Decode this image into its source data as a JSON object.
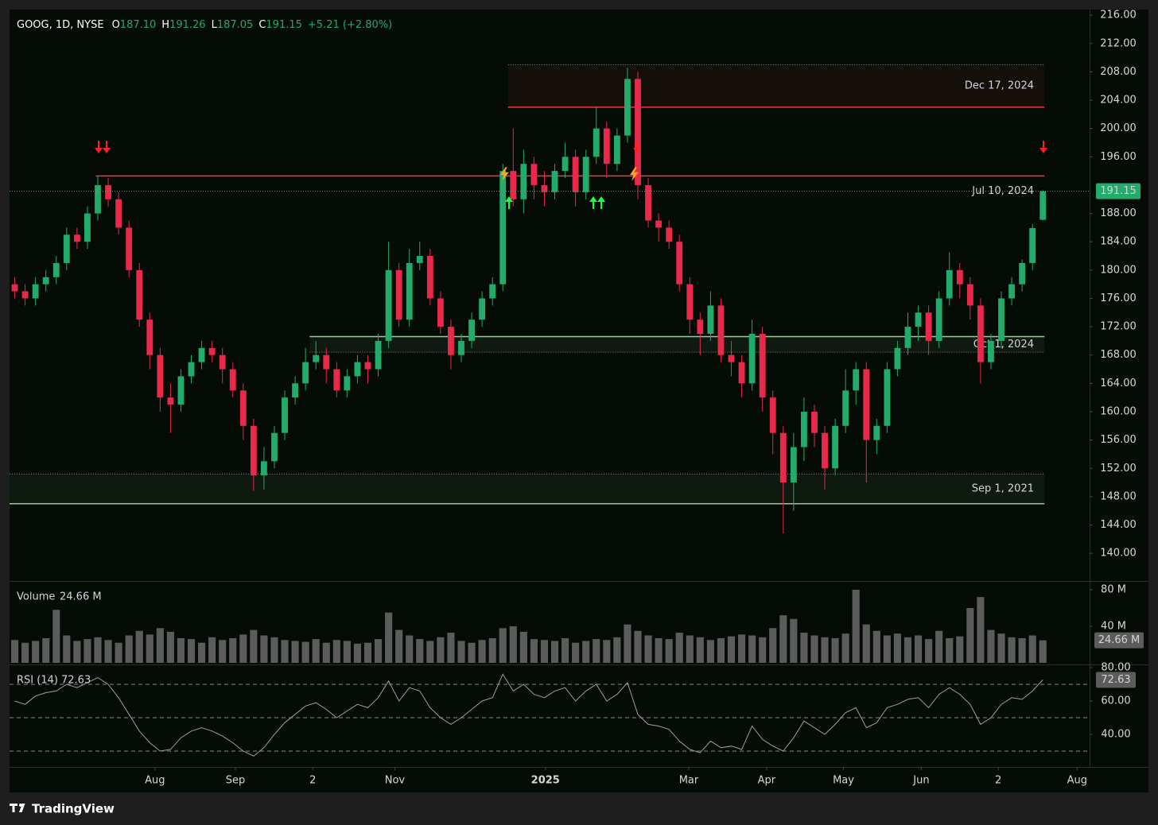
{
  "header": {
    "symbol": "GOOG, 1D, NYSE",
    "ohlc": [
      {
        "key": "O",
        "value": "187.10"
      },
      {
        "key": "H",
        "value": "191.26"
      },
      {
        "key": "L",
        "value": "187.05"
      },
      {
        "key": "C",
        "value": "191.15"
      }
    ],
    "change": "+5.21 (+2.80%)"
  },
  "footer": {
    "brand": "TradingView"
  },
  "chart_data": {
    "type": "candlestick",
    "up_color": "#22ab6a",
    "down_color": "#e8294b",
    "open": [
      178,
      177,
      176,
      178,
      179,
      181,
      185,
      184,
      188,
      192,
      190,
      186,
      180,
      173,
      168,
      162,
      161,
      165,
      167,
      169,
      168,
      166,
      163,
      158,
      151,
      153,
      157,
      162,
      164,
      167,
      168,
      166,
      163,
      165,
      167,
      166,
      170,
      180,
      173,
      181,
      182,
      176,
      172,
      168,
      170,
      173,
      176,
      178,
      194,
      190,
      195,
      192,
      191,
      194,
      196,
      191,
      196,
      200,
      195,
      199,
      207,
      192,
      187,
      186,
      184,
      178,
      173,
      171,
      175,
      168,
      167,
      164,
      171,
      162,
      157,
      150,
      155,
      160,
      157,
      152,
      158,
      163,
      166,
      156,
      158,
      166,
      169,
      172,
      174,
      170,
      176,
      180,
      178,
      175,
      167,
      170,
      176,
      178,
      181,
      187.1
    ],
    "high": [
      179,
      178,
      179,
      180,
      182,
      186,
      186,
      189,
      193.3,
      193,
      191,
      187,
      181,
      174,
      169,
      164,
      166,
      168,
      170,
      170,
      169,
      167,
      164,
      159,
      155,
      158,
      163,
      165,
      169,
      170,
      169,
      167,
      166,
      168,
      168,
      171,
      184,
      181,
      183,
      184,
      183,
      177,
      173,
      171,
      174,
      177,
      179,
      195,
      200,
      197,
      196,
      194,
      195,
      198,
      197,
      197,
      203,
      201,
      200,
      208.6,
      208,
      193,
      188,
      187,
      185,
      179,
      174,
      177,
      176,
      170,
      168,
      173,
      172,
      163,
      158,
      157,
      162,
      161,
      158,
      159,
      166,
      167,
      167,
      159,
      167,
      170,
      174,
      175,
      175,
      177,
      182.5,
      181,
      179,
      176,
      171,
      177,
      179,
      181.5,
      186.5,
      191.26
    ],
    "low": [
      176,
      175,
      175,
      177,
      178,
      180,
      183,
      183,
      187,
      189,
      185,
      179,
      172,
      166,
      160,
      157,
      160,
      164,
      166,
      167,
      164,
      162,
      156,
      148.8,
      149,
      152,
      156,
      161,
      163,
      166,
      164,
      162,
      162,
      164,
      164,
      165,
      169,
      172,
      172,
      180,
      175,
      171,
      166,
      167,
      169,
      172,
      175,
      177,
      189,
      188,
      190,
      189,
      190,
      193,
      189,
      190,
      195,
      193,
      194,
      198,
      190,
      186,
      184,
      183,
      177,
      171,
      168,
      170,
      167,
      165,
      162,
      163,
      160,
      154,
      142.8,
      146,
      153,
      155,
      149,
      151,
      157,
      161,
      150,
      154,
      157,
      165,
      168,
      170,
      168,
      169,
      175,
      176,
      173,
      164,
      166,
      169,
      175,
      177,
      180,
      187.05
    ],
    "close": [
      177,
      176,
      178,
      179,
      181,
      185,
      184,
      188,
      192,
      190,
      186,
      180,
      173,
      168,
      162,
      161,
      165,
      167,
      169,
      168,
      166,
      163,
      158,
      151,
      153,
      157,
      162,
      164,
      167,
      168,
      166,
      163,
      165,
      167,
      166,
      170,
      180,
      173,
      181,
      182,
      176,
      172,
      168,
      170,
      173,
      176,
      178,
      194,
      190,
      195,
      192,
      191,
      194,
      196,
      191,
      196,
      200,
      195,
      199,
      207,
      192,
      187,
      186,
      184,
      178,
      173,
      171,
      175,
      168,
      167,
      164,
      171,
      162,
      157,
      150,
      155,
      160,
      157,
      152,
      158,
      163,
      166,
      156,
      158,
      166,
      169,
      172,
      174,
      170,
      176,
      180,
      178,
      175,
      167,
      170,
      176,
      178,
      181,
      185.94,
      191.15
    ],
    "xlim": [
      -0.5,
      103.5
    ],
    "xticks": [
      {
        "value": 13.5,
        "label": "Aug"
      },
      {
        "value": 21.25,
        "label": "Sep"
      },
      {
        "value": 28.7,
        "label": "2"
      },
      {
        "value": 36.6,
        "label": "Nov"
      },
      {
        "value": 51.1,
        "label": "2025"
      },
      {
        "value": 64.9,
        "label": "Mar"
      },
      {
        "value": 72.4,
        "label": "Apr"
      },
      {
        "value": 79.8,
        "label": "May"
      },
      {
        "value": 87.3,
        "label": "Jun"
      },
      {
        "value": 94.7,
        "label": "2"
      },
      {
        "value": 102.3,
        "label": "Aug"
      }
    ],
    "ylim": [
      136.2,
      216.8
    ],
    "yticks": [
      {
        "value": 140,
        "label": "140.00"
      },
      {
        "value": 144,
        "label": "144.00"
      },
      {
        "value": 148,
        "label": "148.00"
      },
      {
        "value": 152,
        "label": "152.00"
      },
      {
        "value": 156,
        "label": "156.00"
      },
      {
        "value": 160,
        "label": "160.00"
      },
      {
        "value": 164,
        "label": "164.00"
      },
      {
        "value": 168,
        "label": "168.00"
      },
      {
        "value": 172,
        "label": "172.00"
      },
      {
        "value": 176,
        "label": "176.00"
      },
      {
        "value": 180,
        "label": "180.00"
      },
      {
        "value": 184,
        "label": "184.00"
      },
      {
        "value": 188,
        "label": "188.00"
      },
      {
        "value": 196,
        "label": "196.00"
      },
      {
        "value": 200,
        "label": "200.00"
      },
      {
        "value": 204,
        "label": "204.00"
      },
      {
        "value": 208,
        "label": "208.00"
      },
      {
        "value": 212,
        "label": "212.00"
      },
      {
        "value": 216,
        "label": "216.00"
      }
    ],
    "zones": [
      {
        "label": "Dec 17, 2024",
        "low": 203,
        "high": 209,
        "line": 203,
        "start": 47.5,
        "color": "#f23645"
      },
      {
        "label": "Jul 10, 2024",
        "low": 193.3,
        "high": 193.3,
        "line": 193.3,
        "start": 7.8,
        "color": "#f23645"
      },
      {
        "label": "Oct 1, 2024",
        "low": 168.4,
        "high": 170.6,
        "line": 170.6,
        "start": 28.4,
        "color": "#8fd18f"
      },
      {
        "label": "Sep 1, 2021",
        "low": 147,
        "high": 151.2,
        "line": 147,
        "start": -0.5,
        "color": "#8fd18f"
      }
    ],
    "volume": {
      "title": "Volume",
      "color": "#5c5c5c",
      "last_label": "24.66 M",
      "ylim": [
        0,
        87.8
      ],
      "yticks": [
        {
          "value": 40,
          "label": "40 M"
        },
        {
          "value": 80,
          "label": "80 M"
        }
      ],
      "values": [
        25,
        22,
        24,
        27,
        58,
        30,
        24,
        26,
        28,
        25,
        22,
        30,
        35,
        31,
        38,
        34,
        27,
        26,
        22,
        28,
        25,
        27,
        31,
        36,
        30,
        28,
        25,
        24,
        23,
        26,
        22,
        25,
        24,
        21,
        22,
        26,
        55,
        36,
        30,
        26,
        24,
        28,
        33,
        24,
        22,
        25,
        27,
        38,
        40,
        34,
        26,
        25,
        24,
        27,
        22,
        24,
        26,
        25,
        28,
        42,
        35,
        30,
        27,
        26,
        33,
        30,
        28,
        25,
        27,
        29,
        31,
        30,
        28,
        38,
        52,
        48,
        33,
        30,
        28,
        27,
        32,
        80,
        42,
        35,
        30,
        32,
        28,
        30,
        26,
        35,
        27,
        29,
        60,
        72,
        36,
        32,
        28,
        27,
        30,
        24.66
      ]
    },
    "rsi": {
      "title": "RSI (14)",
      "color": "#9e9e9e",
      "ylim": [
        20.5,
        81.4
      ],
      "bands": [
        30,
        50,
        70
      ],
      "yticks": [
        {
          "value": 40,
          "label": "40.00"
        },
        {
          "value": 60,
          "label": "60.00"
        },
        {
          "value": 80,
          "label": "80.00"
        }
      ],
      "values": [
        60,
        58,
        63,
        65,
        66,
        70,
        68,
        71,
        74,
        70,
        62,
        52,
        42,
        35,
        30,
        31,
        38,
        42,
        44,
        42,
        39,
        35,
        30,
        27,
        32,
        40,
        47,
        52,
        57,
        59,
        55,
        50,
        54,
        58,
        56,
        62,
        72,
        60,
        68,
        66,
        56,
        50,
        46,
        50,
        55,
        60,
        62,
        76,
        66,
        70,
        64,
        62,
        66,
        68,
        60,
        66,
        70,
        60,
        64,
        71,
        52,
        46,
        45,
        43,
        36,
        31,
        29,
        36,
        32,
        33,
        31,
        45,
        37,
        33,
        30,
        38,
        48,
        44,
        40,
        46,
        53,
        56,
        44,
        47,
        56,
        58,
        61,
        62,
        56,
        64,
        68,
        64,
        58,
        46,
        50,
        58,
        62,
        61,
        66,
        72.63
      ]
    }
  }
}
